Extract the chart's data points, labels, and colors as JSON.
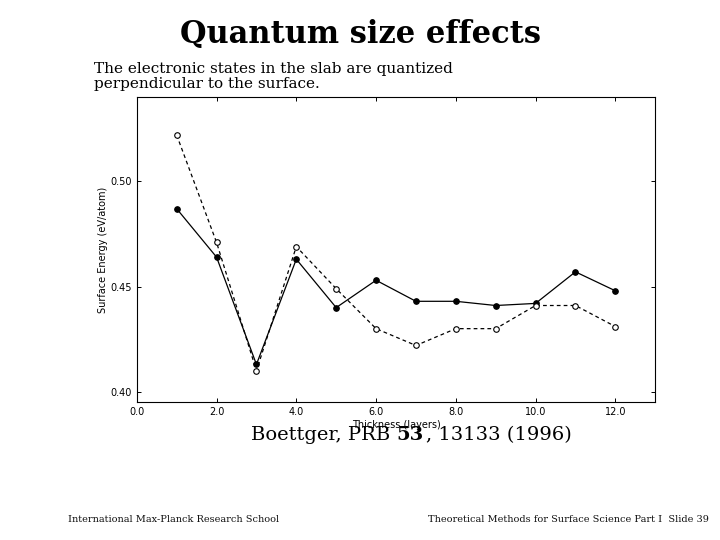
{
  "title": "Quantum size effects",
  "subtitle_line1": "The electronic states in the slab are quantized",
  "subtitle_line2": "perpendicular to the surface.",
  "xlabel": "Thickness (layers)",
  "ylabel": "Surface Energy (eV/atom)",
  "footer_left": "International Max-Planck Research School",
  "footer_right": "Theoretical Methods for Surface Science Part I  Slide 39",
  "xlim": [
    0.0,
    13.0
  ],
  "ylim": [
    0.395,
    0.54
  ],
  "xticks": [
    0.0,
    2.0,
    4.0,
    6.0,
    8.0,
    10.0,
    12.0
  ],
  "ytick_vals": [
    0.4,
    0.45,
    0.5
  ],
  "ytick_labels": [
    "0.40",
    "0.45",
    "0.50"
  ],
  "solid_x": [
    1,
    2,
    3,
    4,
    5,
    6,
    7,
    8,
    9,
    10,
    11,
    12
  ],
  "solid_y": [
    0.487,
    0.464,
    0.413,
    0.463,
    0.44,
    0.453,
    0.443,
    0.443,
    0.441,
    0.442,
    0.457,
    0.448
  ],
  "dashed_x": [
    1,
    2,
    3,
    4,
    5,
    6,
    7,
    8,
    9,
    10,
    11,
    12
  ],
  "dashed_y": [
    0.522,
    0.471,
    0.41,
    0.469,
    0.449,
    0.43,
    0.422,
    0.43,
    0.43,
    0.441,
    0.441,
    0.431
  ],
  "bg_color": "#ffffff",
  "footer_bg": "#70c4aa",
  "line_color": "#000000",
  "title_fontsize": 22,
  "subtitle_fontsize": 11,
  "axis_label_fontsize": 7,
  "tick_fontsize": 7,
  "citation_fontsize": 14,
  "footer_fontsize": 7
}
